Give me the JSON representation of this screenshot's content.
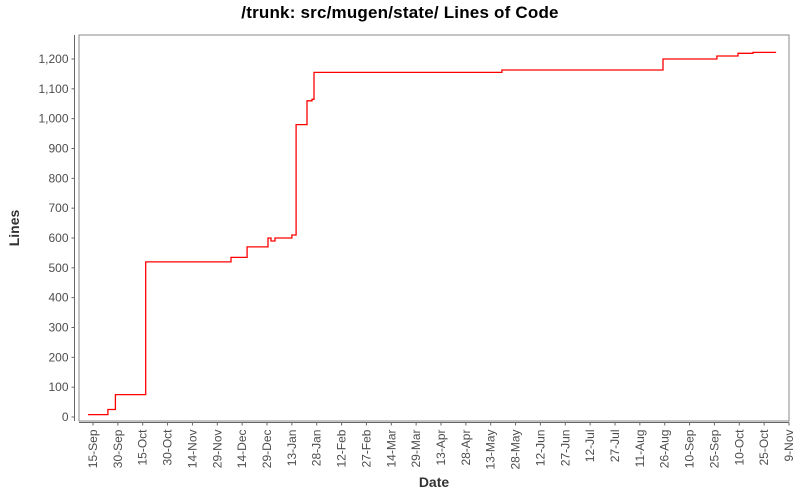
{
  "chart_data": {
    "type": "line",
    "style": "step-after",
    "title": "/trunk: src/mugen/state/ Lines of Code",
    "xlabel": "Date",
    "ylabel": "Lines",
    "grid": false,
    "legend": false,
    "x_unit": "tick index (one tick = 15 days)",
    "x_tick_labels": [
      "15-Sep",
      "30-Sep",
      "15-Oct",
      "30-Oct",
      "14-Nov",
      "29-Nov",
      "14-Dec",
      "29-Dec",
      "13-Jan",
      "28-Jan",
      "12-Feb",
      "27-Feb",
      "14-Mar",
      "29-Mar",
      "13-Apr",
      "28-Apr",
      "13-May",
      "28-May",
      "12-Jun",
      "27-Jun",
      "12-Jul",
      "27-Jul",
      "11-Aug",
      "26-Aug",
      "10-Sep",
      "25-Sep",
      "10-Oct",
      "25-Oct",
      "9-Nov"
    ],
    "y_ticks": [
      0,
      100,
      200,
      300,
      400,
      500,
      600,
      700,
      800,
      900,
      1000,
      1100,
      1200
    ],
    "y_tick_labels": [
      "0",
      "100",
      "200",
      "300",
      "400",
      "500",
      "600",
      "700",
      "800",
      "900",
      "1,000",
      "1,100",
      "1,200"
    ],
    "ylim": [
      -15,
      1285
    ],
    "series": [
      {
        "name": "Lines of Code",
        "color": "#ff0000",
        "points": [
          {
            "x": -0.2,
            "y": 8
          },
          {
            "x": 0.6,
            "y": 25
          },
          {
            "x": 0.9,
            "y": 75
          },
          {
            "x": 2.12,
            "y": 520
          },
          {
            "x": 5.55,
            "y": 535
          },
          {
            "x": 6.2,
            "y": 570
          },
          {
            "x": 7.04,
            "y": 600
          },
          {
            "x": 7.16,
            "y": 590
          },
          {
            "x": 7.32,
            "y": 600
          },
          {
            "x": 8.0,
            "y": 610
          },
          {
            "x": 8.17,
            "y": 980
          },
          {
            "x": 8.61,
            "y": 1060
          },
          {
            "x": 8.81,
            "y": 1065
          },
          {
            "x": 8.89,
            "y": 1155
          },
          {
            "x": 16.45,
            "y": 1163
          },
          {
            "x": 22.93,
            "y": 1200
          },
          {
            "x": 25.1,
            "y": 1210
          },
          {
            "x": 25.95,
            "y": 1219
          },
          {
            "x": 26.55,
            "y": 1222
          }
        ],
        "x_end": 27.48
      }
    ],
    "colors": {
      "plot_border": "#888888",
      "axis_line": "#666666",
      "tick_label": "#4d4d4d"
    }
  }
}
